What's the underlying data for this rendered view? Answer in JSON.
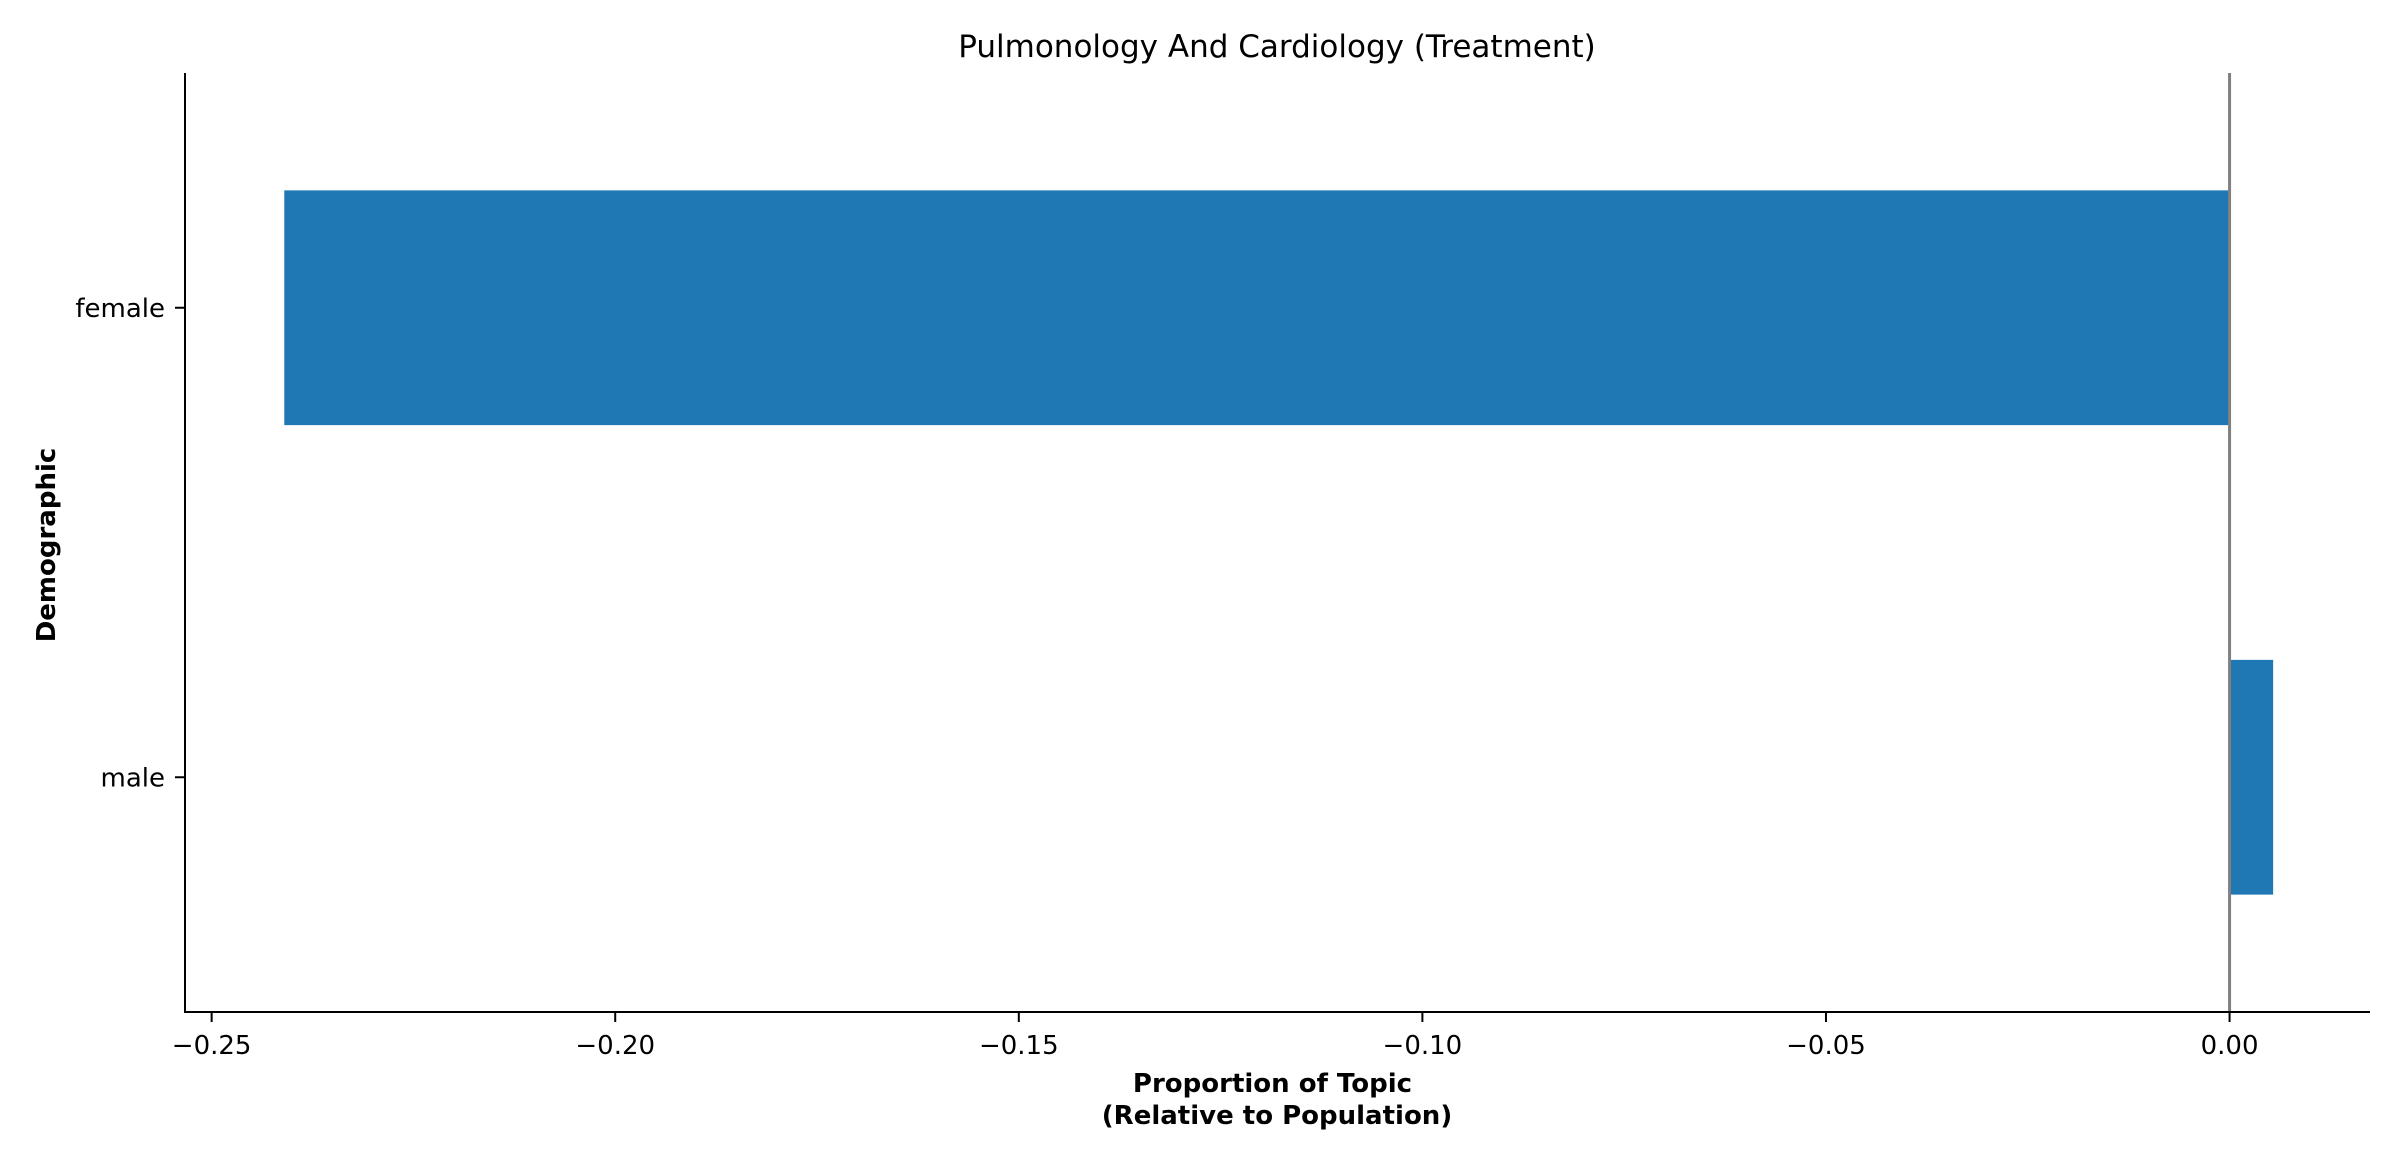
{
  "chart_data": {
    "type": "bar",
    "orientation": "horizontal",
    "title": "Pulmonology And Cardiology (Treatment)",
    "xlabel": [
      "Proportion of Topic",
      "(Relative to Population)"
    ],
    "ylabel": "Demographic",
    "categories": [
      "female",
      "male"
    ],
    "values": [
      -0.241,
      0.0054
    ],
    "xlim": [
      -0.2533,
      0.0174
    ],
    "xticks": [
      -0.25,
      -0.2,
      -0.15,
      -0.1,
      -0.05,
      0.0
    ],
    "xtick_labels": [
      "−0.25",
      "−0.20",
      "−0.15",
      "−0.10",
      "−0.05",
      "0.00"
    ],
    "zero_line": true,
    "grid": false,
    "legend": "none",
    "bar_color": "#1f77b4",
    "zero_line_color": "#808080"
  }
}
